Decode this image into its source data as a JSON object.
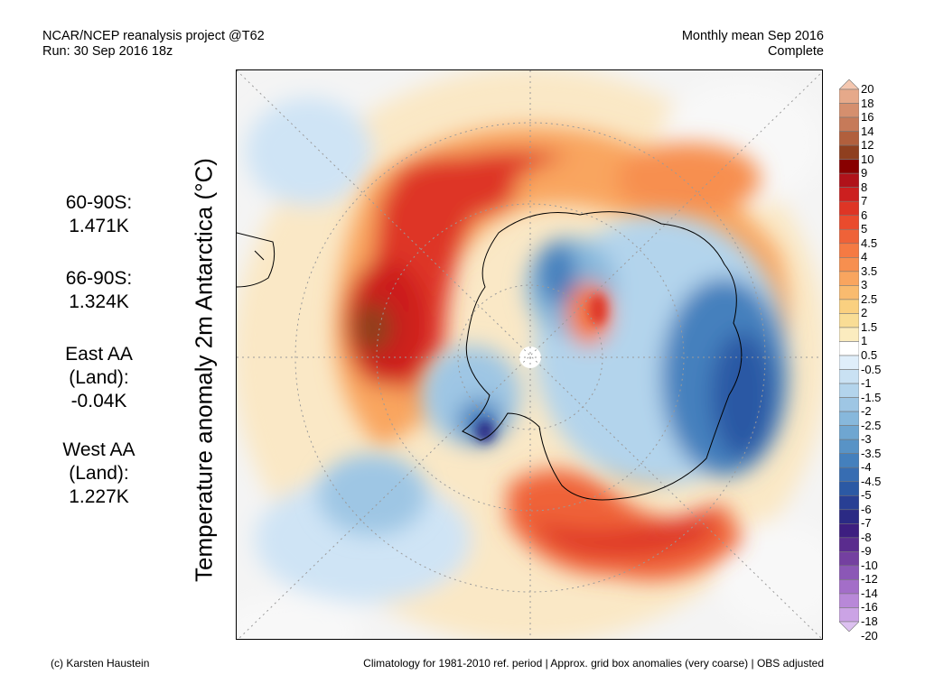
{
  "header": {
    "left_line1": "NCAR/NCEP reanalysis project @T62",
    "left_line2": "Run: 30 Sep 2016 18z",
    "right_line1": "Monthly mean Sep 2016",
    "right_line2": "Complete"
  },
  "y_axis_label": "Temperature anomaly 2m Antarctica (°C)",
  "stats": [
    {
      "lines": [
        "60-90S:",
        "1.471K"
      ]
    },
    {
      "lines": [
        "66-90S:",
        "1.324K"
      ]
    },
    {
      "lines": [
        "East AA",
        "(Land):",
        "-0.04K"
      ]
    },
    {
      "lines": [
        "West AA",
        "(Land):",
        "1.227K"
      ]
    }
  ],
  "colorbar": {
    "labels": [
      "20",
      "18",
      "16",
      "14",
      "12",
      "10",
      "9",
      "8",
      "7",
      "6",
      "5",
      "4.5",
      "4",
      "3.5",
      "3",
      "2.5",
      "2",
      "1.5",
      "1",
      "0.5",
      "-0.5",
      "-1",
      "-1.5",
      "-2",
      "-2.5",
      "-3",
      "-3.5",
      "-4",
      "-4.5",
      "-5",
      "-6",
      "-7",
      "-8",
      "-9",
      "-10",
      "-12",
      "-14",
      "-16",
      "-18",
      "-20"
    ],
    "colors": [
      "#f4c7b0",
      "#e6a98a",
      "#d58f6e",
      "#c67a59",
      "#b15f3d",
      "#8f3f1f",
      "#880000",
      "#b0121a",
      "#cc1f1f",
      "#de3525",
      "#ea4b2d",
      "#ef6238",
      "#f57a43",
      "#f78f4f",
      "#f9a55f",
      "#f9bb6f",
      "#fad080",
      "#f9dd95",
      "#fbecbf",
      "#ffffff",
      "#dfeefa",
      "#c9e1f3",
      "#b3d4ec",
      "#9ec6e4",
      "#87b8dc",
      "#6fa6d1",
      "#5893c6",
      "#4480bd",
      "#376db2",
      "#2b59a4",
      "#283f94",
      "#2b2a84",
      "#3d1e80",
      "#5a2c8e",
      "#7440a0",
      "#8b57b6",
      "#a36ec8",
      "#b888d8",
      "#cba3e5",
      "#dcc0f0"
    ]
  },
  "footer": {
    "left": "(c) Karsten Haustein",
    "right": "Climatology for 1981-2010 ref. period | Approx. grid box anomalies (very coarse) | OBS adjusted"
  }
}
